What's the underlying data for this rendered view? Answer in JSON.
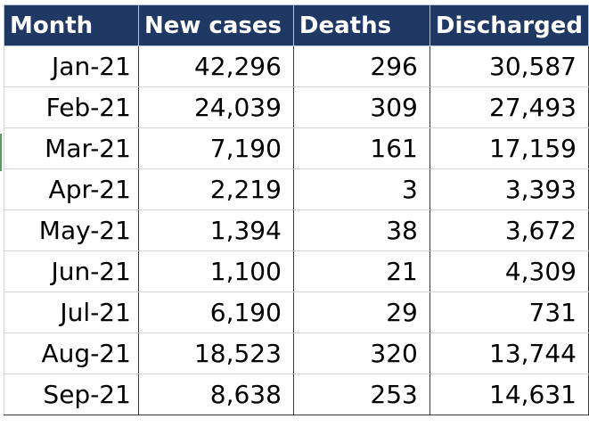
{
  "table": {
    "headers": [
      "Month",
      "New cases",
      "Deaths",
      "Discharged"
    ],
    "rows": [
      [
        "Jan-21",
        "42,296",
        "296",
        "30,587"
      ],
      [
        "Feb-21",
        "24,039",
        "309",
        "27,493"
      ],
      [
        "Mar-21",
        "7,190",
        "161",
        "17,159"
      ],
      [
        "Apr-21",
        "2,219",
        "3",
        "3,393"
      ],
      [
        "May-21",
        "1,394",
        "38",
        "3,672"
      ],
      [
        "Jun-21",
        "1,100",
        "21",
        "4,309"
      ],
      [
        "Jul-21",
        "6,190",
        "29",
        "731"
      ],
      [
        "Aug-21",
        "18,523",
        "320",
        "13,744"
      ],
      [
        "Sep-21",
        "8,638",
        "253",
        "14,631"
      ]
    ]
  },
  "colors": {
    "header_bg": "#1f3864",
    "header_text": "#ffffff",
    "cell_border": "#d4d4d4"
  }
}
